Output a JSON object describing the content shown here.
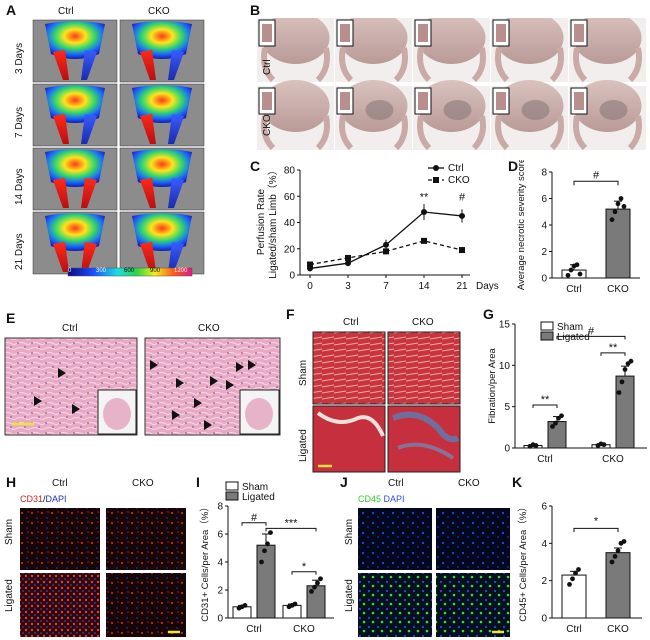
{
  "figure": {
    "panels": {
      "A": {
        "letter": "A",
        "cols": [
          "Ctrl",
          "CKO"
        ],
        "rows": [
          "3 Days",
          "7 Days",
          "14 Days",
          "21 Days"
        ],
        "colorbar_ticks": [
          "0",
          "300",
          "600",
          "900",
          "1200"
        ]
      },
      "B": {
        "letter": "B",
        "rows": [
          "Ctrl",
          "CKO"
        ]
      },
      "C": {
        "letter": "C"
      },
      "D": {
        "letter": "D"
      },
      "E": {
        "letter": "E",
        "cols": [
          "Ctrl",
          "CKO"
        ]
      },
      "F": {
        "letter": "F",
        "cols": [
          "Ctrl",
          "CKO"
        ],
        "rows": [
          "Sham",
          "Ligated"
        ]
      },
      "G": {
        "letter": "G"
      },
      "H": {
        "letter": "H",
        "cols": [
          "Ctrl",
          "CKO"
        ],
        "rows": [
          "Sham",
          "Ligated"
        ],
        "stain_a": "CD31",
        "stain_sep": "/",
        "stain_b": "DAPI"
      },
      "I": {
        "letter": "I"
      },
      "J": {
        "letter": "J",
        "cols": [
          "Ctrl",
          "CKO"
        ],
        "rows": [
          "Sham",
          "Ligated"
        ],
        "stain_a": "CD45",
        "stain_sep": "/",
        "stain_b": "DAPI"
      },
      "K": {
        "letter": "K"
      }
    }
  },
  "chart_data": [
    {
      "id": "C",
      "type": "line",
      "ylabel_line1": "Perfusion Rate",
      "ylabel_line2": "Ligated/sham Limb（%）",
      "xlabel": "Days",
      "x": [
        0,
        3,
        7,
        14,
        21
      ],
      "ylim": [
        0,
        80
      ],
      "yticks": [
        0,
        20,
        40,
        60,
        80
      ],
      "series": [
        {
          "name": "Ctrl",
          "values": [
            5,
            9,
            23,
            48,
            45
          ]
        },
        {
          "name": "CKO",
          "values": [
            8,
            13,
            18,
            26,
            19
          ]
        }
      ],
      "annotations": [
        {
          "x": 14,
          "text": "**"
        },
        {
          "x": 21,
          "text": "#"
        }
      ],
      "legend": "top-right"
    },
    {
      "id": "D",
      "type": "bar",
      "ylabel": "Average necrotic severity score",
      "categories": [
        "Ctrl",
        "CKO"
      ],
      "values": [
        0.6,
        5.2
      ],
      "ylim": [
        0,
        8
      ],
      "yticks": [
        0,
        2,
        4,
        6,
        8
      ],
      "points": [
        [
          0.2,
          0.6,
          0.9,
          1.0,
          0.3
        ],
        [
          4.4,
          5.0,
          5.6,
          6.0,
          5.4
        ]
      ],
      "annotations": [
        {
          "text": "#"
        }
      ]
    },
    {
      "id": "G",
      "type": "bar",
      "ylabel": "Fibration/per Area",
      "categories": [
        "Ctrl",
        "CKO"
      ],
      "series": [
        {
          "name": "Sham",
          "values": [
            0.3,
            0.4
          ]
        },
        {
          "name": "Ligated",
          "values": [
            3.2,
            8.7
          ]
        }
      ],
      "ylim": [
        0,
        15
      ],
      "yticks": [
        0,
        5,
        10,
        15
      ],
      "points": {
        "Sham": [
          [
            0.2,
            0.4,
            0.3
          ],
          [
            0.3,
            0.5,
            0.4
          ]
        ],
        "Ligated": [
          [
            2.6,
            3.0,
            3.6,
            3.9
          ],
          [
            6.7,
            8.0,
            9.5,
            10.2,
            10.5
          ]
        ]
      },
      "annotations": [
        {
          "text": "**"
        },
        {
          "text": "**"
        },
        {
          "text": "#"
        }
      ],
      "legend": "top-left"
    },
    {
      "id": "I",
      "type": "bar",
      "ylabel": "CD31+ Cells/per Area（%）",
      "categories": [
        "Ctrl",
        "CKO"
      ],
      "series": [
        {
          "name": "Sham",
          "values": [
            0.8,
            0.9
          ]
        },
        {
          "name": "Ligated",
          "values": [
            5.2,
            2.3
          ]
        }
      ],
      "ylim": [
        0,
        8
      ],
      "yticks": [
        0,
        2,
        4,
        6,
        8
      ],
      "points": {
        "Sham": [
          [
            0.7,
            0.8,
            0.9
          ],
          [
            0.8,
            0.9,
            1.0
          ]
        ],
        "Ligated": [
          [
            4.0,
            4.8,
            5.3,
            6.1
          ],
          [
            1.9,
            2.2,
            2.5,
            2.8
          ]
        ]
      },
      "annotations": [
        {
          "text": "#"
        },
        {
          "text": "***"
        },
        {
          "text": "*"
        }
      ],
      "legend": "top-left"
    },
    {
      "id": "K",
      "type": "bar",
      "ylabel": "CD45+ Cells/per Area（%）",
      "categories": [
        "Ctrl",
        "CKO"
      ],
      "values": [
        2.3,
        3.5
      ],
      "ylim": [
        0,
        6
      ],
      "yticks": [
        0,
        2,
        4,
        6
      ],
      "points": [
        [
          1.8,
          2.1,
          2.4,
          2.6
        ],
        [
          3.0,
          3.3,
          3.6,
          4.0,
          4.1
        ]
      ],
      "annotations": [
        {
          "text": "*"
        }
      ]
    }
  ]
}
